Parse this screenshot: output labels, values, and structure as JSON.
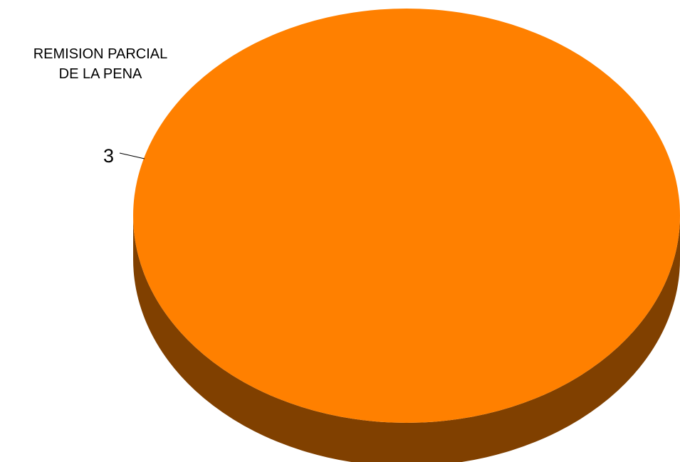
{
  "chart_data": {
    "type": "pie",
    "title": "",
    "categories": [
      "REMISION PARCIAL DE LA PENA"
    ],
    "category_label_lines": [
      "REMISION PARCIAL",
      "DE LA PENA"
    ],
    "values": [
      3
    ],
    "data_labels": [
      "3"
    ],
    "three_d": true,
    "colors": {
      "slice_top": "#ff8000",
      "slice_side": "#804000",
      "leader_line": "#000000"
    }
  }
}
